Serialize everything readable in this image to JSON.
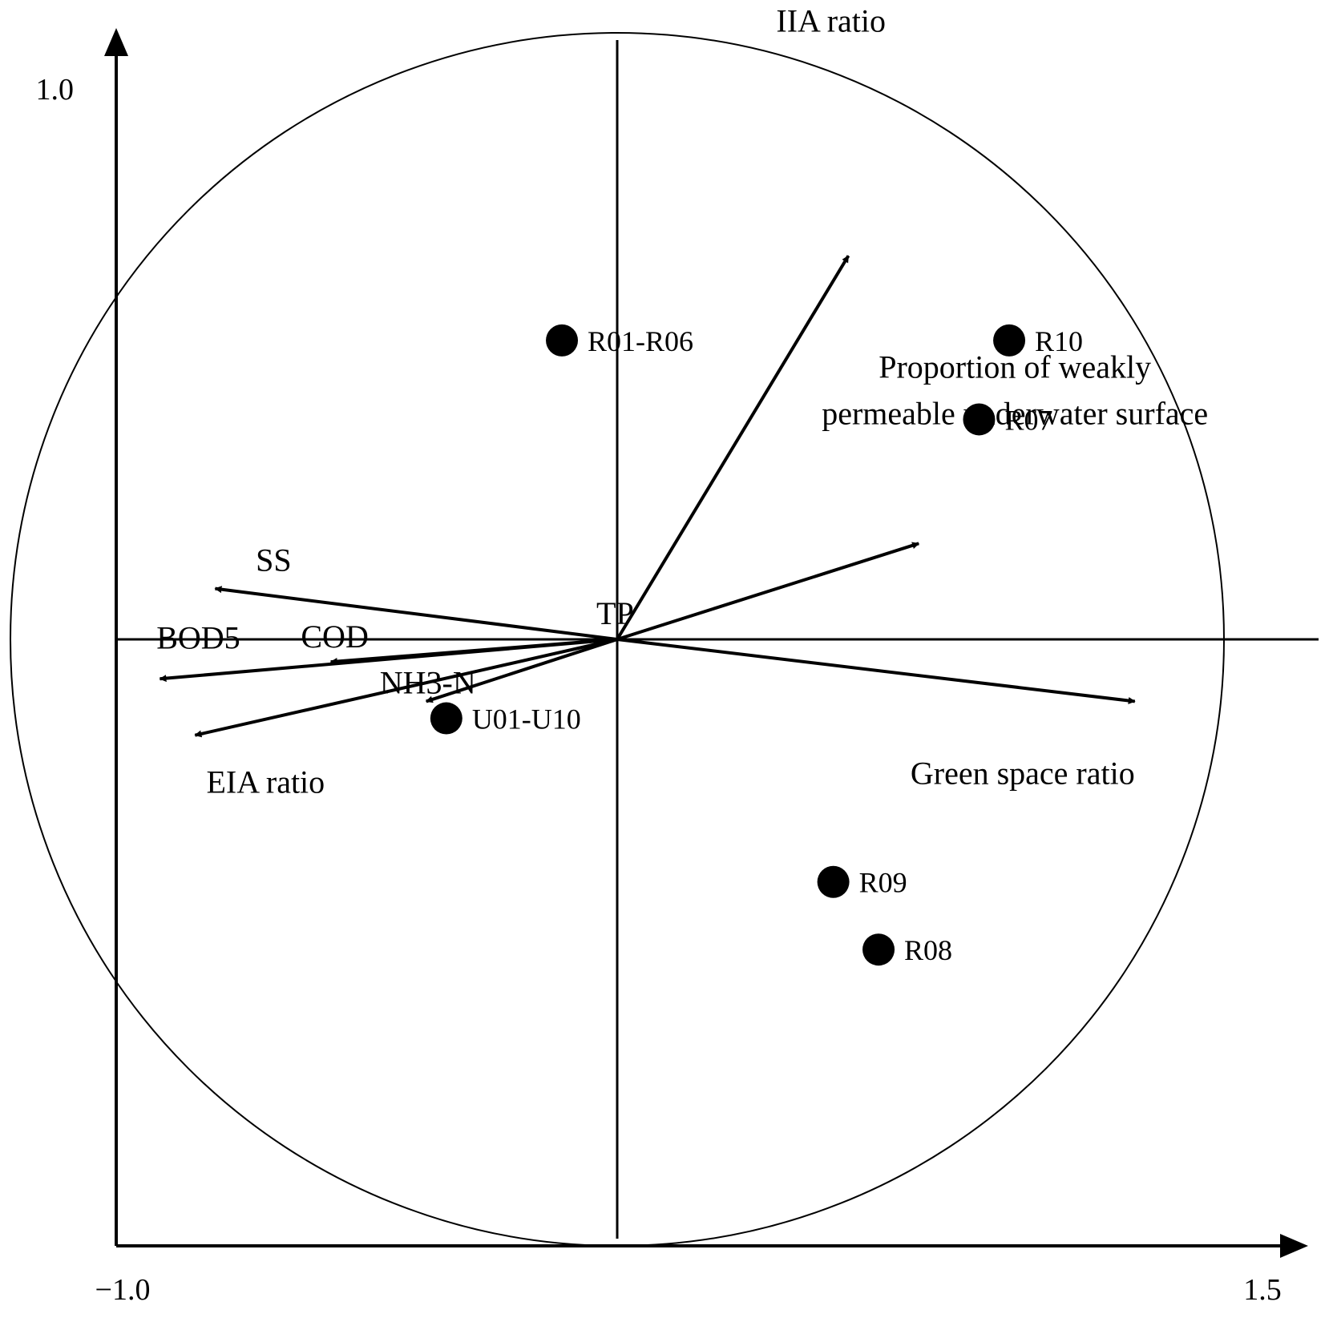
{
  "chart_data": {
    "type": "scatter",
    "x_ticks": [
      "−1.0",
      "1.5"
    ],
    "y_ticks": [
      "1.0"
    ],
    "xlim": [
      -1.0,
      1.5
    ],
    "ylim": [
      -1.0,
      1.0
    ],
    "vectors": [
      {
        "name": "IIA ratio",
        "x": 0.46,
        "y": 0.68
      },
      {
        "name": "Proportion of weakly permeable underwater surface",
        "x": 0.6,
        "y": 0.17
      },
      {
        "name": "Green space ratio",
        "x": 1.03,
        "y": -0.11
      },
      {
        "name": "SS",
        "x": -0.8,
        "y": 0.09
      },
      {
        "name": "TP",
        "x": -0.06,
        "y": 0.01
      },
      {
        "name": "COD",
        "x": -0.57,
        "y": -0.04
      },
      {
        "name": "BOD5",
        "x": -0.91,
        "y": -0.07
      },
      {
        "name": "NH3-N",
        "x": -0.38,
        "y": -0.11
      },
      {
        "name": "EIA ratio",
        "x": -0.84,
        "y": -0.17
      }
    ],
    "points": [
      {
        "name": "R01-R06",
        "x": -0.11,
        "y": 0.53
      },
      {
        "name": "R10",
        "x": 0.78,
        "y": 0.53
      },
      {
        "name": "R07",
        "x": 0.72,
        "y": 0.39
      },
      {
        "name": "U01-U10",
        "x": -0.34,
        "y": -0.14
      },
      {
        "name": "R09",
        "x": 0.43,
        "y": -0.43
      },
      {
        "name": "R08",
        "x": 0.52,
        "y": -0.55
      }
    ]
  }
}
